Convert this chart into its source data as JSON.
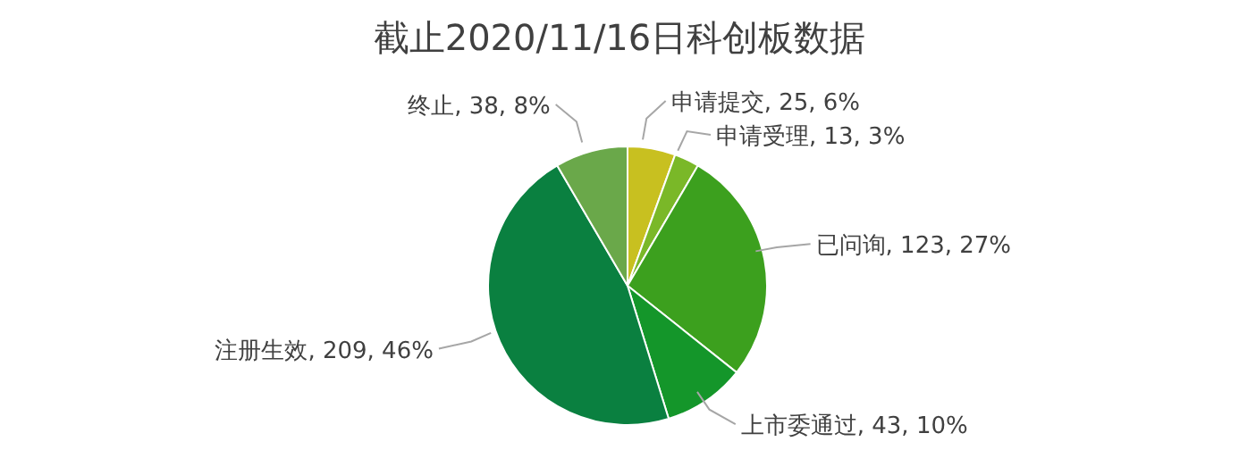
{
  "chart_data": {
    "type": "pie",
    "title": "截止2020/11/16日科创板数据",
    "categories": [
      "申请提交",
      "申请受理",
      "已问询",
      "上市委通过",
      "注册生效",
      "终止"
    ],
    "values": [
      25,
      13,
      123,
      43,
      209,
      38
    ],
    "value_labels": [
      "25, 6%",
      "13, 3%",
      "123, 27%",
      "43, 10%",
      "209, 46%",
      "38, 8%"
    ],
    "colors": [
      "#c8c020",
      "#7ab828",
      "#3ca01e",
      "#14962a",
      "#0a8040",
      "#6aa84a"
    ],
    "legend": false
  }
}
